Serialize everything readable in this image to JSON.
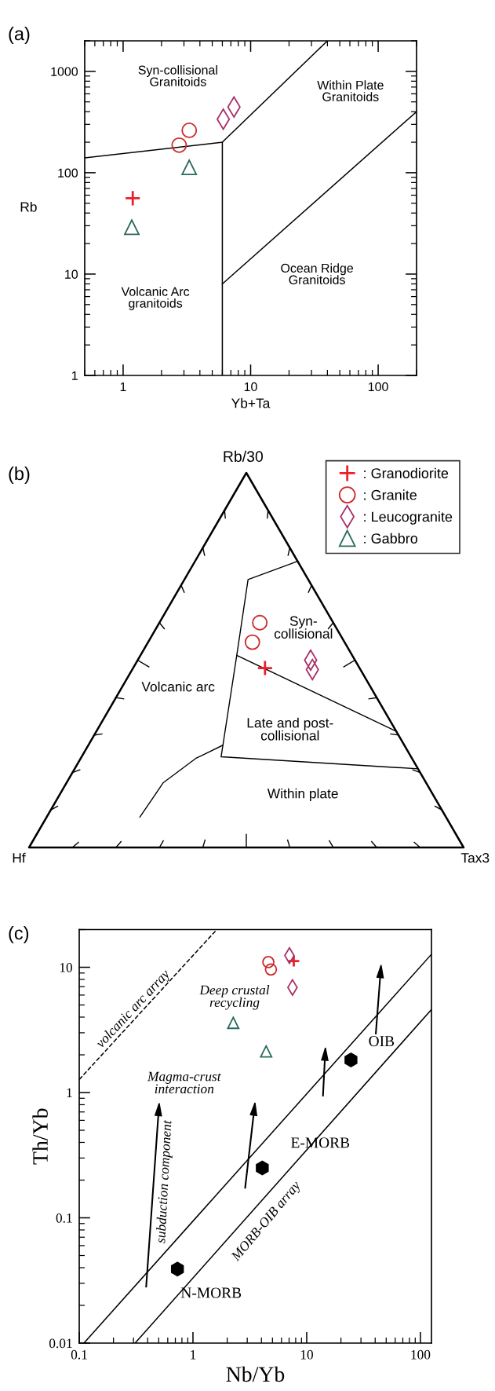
{
  "chart_data": [
    {
      "type": "scatter",
      "title": "(a)",
      "xlabel": "Yb+Ta",
      "ylabel": "Rb",
      "log": "xy",
      "xlim": [
        0.5,
        200
      ],
      "ylim": [
        1,
        2000
      ],
      "xticks": [
        1,
        10,
        100
      ],
      "yticks": [
        1,
        10,
        100,
        1000
      ],
      "grid": false,
      "annotations": [
        "Syn-collisional\nGranitoids",
        "Within Plate\nGranitoids",
        "Ocean Ridge\nGranitoids",
        "Volcanic Arc\ngranitoids"
      ],
      "series": [
        {
          "type": "line",
          "color": "#000000",
          "x": [
            0.5,
            6
          ],
          "values": [
            140,
            200
          ]
        },
        {
          "type": "line",
          "color": "#000000",
          "x": [
            6,
            6,
            40
          ],
          "values": [
            1,
            200,
            2000
          ]
        },
        {
          "type": "line",
          "color": "#000000",
          "x": [
            6,
            200
          ],
          "values": [
            8,
            400
          ]
        },
        {
          "marker": "cross",
          "color": "#e8202a",
          "x": [
            1.19
          ],
          "values": [
            56
          ]
        },
        {
          "marker": "circle",
          "color": "#cc2a2a",
          "x": [
            2.75,
            3.3
          ],
          "values": [
            187,
            262
          ]
        },
        {
          "marker": "diamond",
          "color": "#a8306a",
          "x": [
            6.1,
            7.4
          ],
          "values": [
            337,
            445
          ]
        },
        {
          "marker": "triangle",
          "color": "#2a6a5e",
          "x": [
            1.17,
            3.3
          ],
          "values": [
            29,
            113
          ]
        }
      ]
    },
    {
      "type": "other",
      "title": "(b)",
      "legend": "top right",
      "annotations": [
        "Rb/30",
        "Hf",
        "Tax3",
        "Syn-\ncollisional",
        "Volcanic arc",
        "Late and post-\ncollisional",
        "Within plate"
      ],
      "series": [
        {
          "name": ": Granodiorite",
          "marker": "cross",
          "color": "#e8202a"
        },
        {
          "name": ": Granite",
          "marker": "circle",
          "color": "#cc2a2a"
        },
        {
          "name": ": Leucogranite",
          "marker": "diamond",
          "color": "#a8306a"
        },
        {
          "name": ": Gabbro",
          "marker": "triangle",
          "color": "#2a6a5e"
        }
      ]
    },
    {
      "type": "scatter",
      "title": "(c)",
      "xlabel": "Nb/Yb",
      "ylabel": "Th/Yb",
      "log": "xy",
      "xlim": [
        0.1,
        125
      ],
      "ylim": [
        0.01,
        20
      ],
      "xticks": [
        0.1,
        1,
        10,
        100
      ],
      "yticks": [
        0.01,
        0.1,
        1,
        10
      ],
      "grid": false,
      "annotations": [
        {
          "text": "N-MORB",
          "x": 0.73,
          "y": 0.039
        },
        {
          "text": "E-MORB",
          "x": 4.07,
          "y": 0.25
        },
        {
          "text": "OIB",
          "x": 24.5,
          "y": 1.82
        },
        "volcanic arc array",
        "Deep crustal\nrecycling",
        "Magma-crust\ninteraction",
        "subduction component",
        "MORB-OIB array"
      ],
      "series": [
        {
          "type": "line",
          "color": "#000000",
          "x": [
            0.11,
            125
          ],
          "values": [
            0.01,
            12.7
          ]
        },
        {
          "type": "line",
          "color": "#000000",
          "x": [
            0.31,
            125
          ],
          "values": [
            0.01,
            4.6
          ]
        },
        {
          "type": "line",
          "line_style": "dashed",
          "color": "#000000",
          "x": [
            0.1,
            1.62
          ],
          "values": [
            1.27,
            20
          ]
        },
        {
          "color": "#000000",
          "x": [
            0.73,
            4.07,
            24.5
          ],
          "values": [
            0.039,
            0.25,
            1.82
          ]
        },
        {
          "marker": "cross",
          "color": "#e8202a",
          "x": [
            7.7
          ],
          "values": [
            11.2
          ]
        },
        {
          "marker": "circle",
          "color": "#cc2a2a",
          "x": [
            4.6,
            4.85
          ],
          "values": [
            11,
            9.6
          ]
        },
        {
          "marker": "diamond",
          "color": "#a8306a",
          "x": [
            7.05,
            7.5
          ],
          "values": [
            12.4,
            6.9
          ]
        },
        {
          "marker": "triangle",
          "color": "#2a6a5e",
          "x": [
            2.26,
            4.4
          ],
          "values": [
            3.6,
            2.13
          ]
        }
      ]
    }
  ]
}
